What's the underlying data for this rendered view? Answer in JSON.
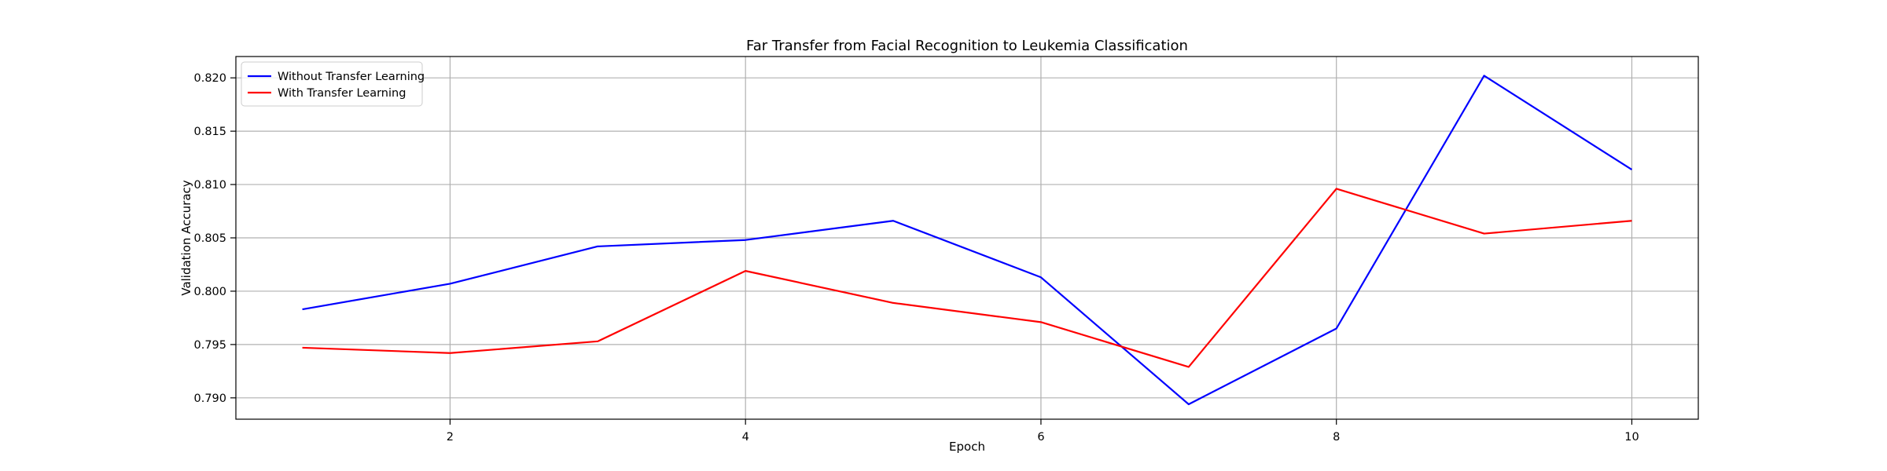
{
  "chart_data": {
    "type": "line",
    "title": "Far Transfer from Facial Recognition to Leukemia Classification",
    "xlabel": "Epoch",
    "ylabel": "Validation Accuracy",
    "x": [
      1,
      2,
      3,
      4,
      5,
      6,
      7,
      8,
      9,
      10
    ],
    "xlim": [
      0.55,
      10.45
    ],
    "ylim": [
      0.788,
      0.822
    ],
    "xticks": [
      2,
      4,
      6,
      8,
      10
    ],
    "xtick_labels": [
      "2",
      "4",
      "6",
      "8",
      "10"
    ],
    "yticks": [
      0.79,
      0.795,
      0.8,
      0.805,
      0.81,
      0.815,
      0.82
    ],
    "ytick_labels": [
      "0.790",
      "0.795",
      "0.800",
      "0.805",
      "0.810",
      "0.815",
      "0.820"
    ],
    "grid": true,
    "legend_position": "top-left",
    "series": [
      {
        "name": "Without Transfer Learning",
        "color": "#0000ff",
        "values": [
          0.7983,
          0.8007,
          0.8042,
          0.8048,
          0.8066,
          0.8013,
          0.7894,
          0.7965,
          0.8202,
          0.8114
        ]
      },
      {
        "name": "With Transfer Learning",
        "color": "#ff0000",
        "values": [
          0.7947,
          0.7942,
          0.7953,
          0.8019,
          0.7989,
          0.7971,
          0.7929,
          0.8096,
          0.8054,
          0.8066
        ]
      }
    ]
  }
}
